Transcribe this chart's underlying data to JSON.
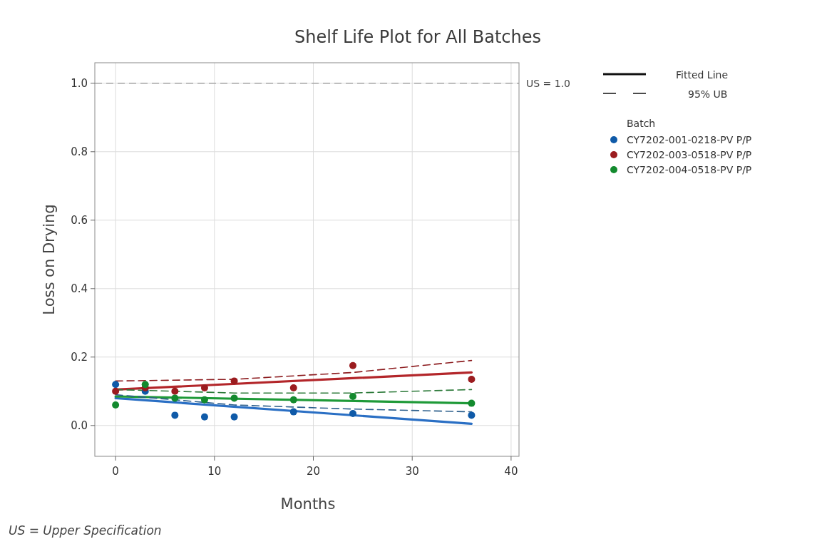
{
  "chart_data": {
    "type": "scatter",
    "title": "Shelf Life Plot for All Batches",
    "xlabel": "Months",
    "ylabel": "Loss on Drying",
    "legend_title": "Batch",
    "legend": "top right",
    "grid": true,
    "marker": "circle",
    "xlim": [
      -2.1,
      40.8
    ],
    "xticks": [
      0,
      10,
      20,
      30,
      40
    ],
    "ylim": [
      -0.09,
      1.06
    ],
    "yticks": [
      {
        "value": 0,
        "label": "0.0"
      },
      0.2,
      0.4,
      0.6,
      0.8,
      {
        "value": 1,
        "label": "1.0"
      }
    ],
    "ref_lines": [
      {
        "axis": "y",
        "value": 1,
        "label": "US = 1.0",
        "color": "#a6a6a6",
        "line_style": "dashed"
      }
    ],
    "annotations": [
      "US = Upper Specification",
      "Fitted Line",
      "95% UB"
    ],
    "series": [
      {
        "name": "CY7202-001-0218-PV P/P",
        "color": "#0f5aa8",
        "x": [
          0,
          3,
          6,
          9,
          12,
          18,
          24,
          36
        ],
        "values": [
          0.12,
          0.1,
          0.03,
          0.025,
          0.025,
          0.04,
          0.035,
          0.03
        ]
      },
      {
        "name": "CY7202-003-0518-PV P/P",
        "color": "#9b1c1f",
        "x": [
          0,
          3,
          6,
          9,
          12,
          18,
          24,
          36
        ],
        "values": [
          0.1,
          0.11,
          0.1,
          0.11,
          0.13,
          0.11,
          0.175,
          0.135
        ]
      },
      {
        "name": "CY7202-004-0518-PV P/P",
        "color": "#138a2e",
        "x": [
          0,
          3,
          6,
          9,
          12,
          18,
          24,
          36
        ],
        "values": [
          0.06,
          0.12,
          0.08,
          0.075,
          0.08,
          0.075,
          0.085,
          0.065
        ]
      },
      {
        "type": "line",
        "color": "#2a6fc4",
        "line_style": "solid",
        "marker": "none",
        "x": [
          0,
          36
        ],
        "values": [
          0.08,
          0.005
        ]
      },
      {
        "type": "line",
        "color": "#b3262a",
        "line_style": "solid",
        "marker": "none",
        "x": [
          0,
          36
        ],
        "values": [
          0.105,
          0.155
        ]
      },
      {
        "type": "line",
        "color": "#1f9a38",
        "line_style": "solid",
        "marker": "none",
        "x": [
          0,
          36
        ],
        "values": [
          0.085,
          0.065
        ]
      },
      {
        "type": "line",
        "color": "#2d5f8c",
        "line_style": "dashed",
        "marker": "none",
        "x": [
          0,
          12,
          24,
          36
        ],
        "values": [
          0.09,
          0.06,
          0.048,
          0.04
        ]
      },
      {
        "type": "line",
        "color": "#8c1c1f",
        "line_style": "dashed",
        "marker": "none",
        "x": [
          0,
          12,
          24,
          36
        ],
        "values": [
          0.13,
          0.135,
          0.155,
          0.19
        ]
      },
      {
        "type": "line",
        "color": "#2d7a3a",
        "line_style": "dashed",
        "marker": "none",
        "x": [
          0,
          12,
          24,
          36
        ],
        "values": [
          0.105,
          0.095,
          0.095,
          0.105
        ]
      }
    ]
  }
}
